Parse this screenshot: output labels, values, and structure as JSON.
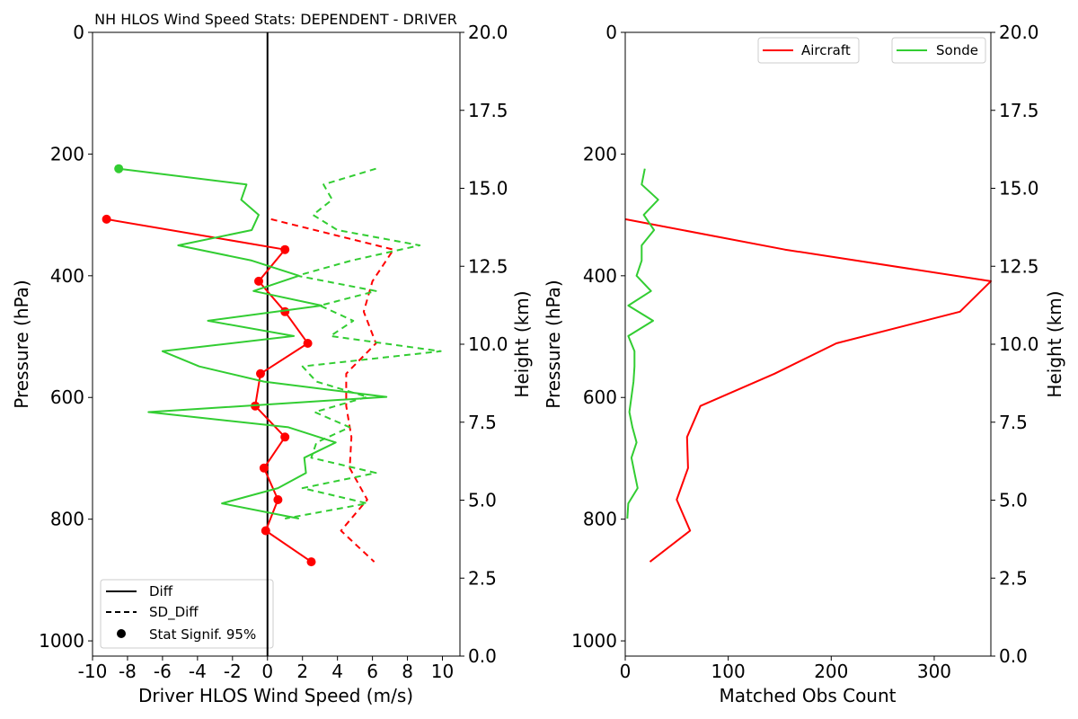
{
  "chart_data": [
    {
      "type": "line",
      "title": "NH HLOS Wind Speed Stats: DEPENDENT - DRIVER",
      "xlabel": "Driver HLOS Wind Speed (m/s)",
      "ylabel": "Pressure (hPa)",
      "ylabel_right": "Height (km)",
      "xlim": [
        -10,
        11
      ],
      "ylim": [
        1025,
        0
      ],
      "ylim_right": [
        0,
        20
      ],
      "xticks": [
        "-10",
        "-8",
        "-6",
        "-4",
        "-2",
        "0",
        "2",
        "4",
        "6",
        "8",
        "10"
      ],
      "xtick_values": [
        -10,
        -8,
        -6,
        -4,
        -2,
        0,
        2,
        4,
        6,
        8,
        10
      ],
      "yticks": [
        "0",
        "200",
        "400",
        "600",
        "800",
        "1000"
      ],
      "ytick_values": [
        0,
        200,
        400,
        600,
        800,
        1000
      ],
      "yticks_right": [
        "0.0",
        "2.5",
        "5.0",
        "7.5",
        "10.0",
        "12.5",
        "15.0",
        "17.5",
        "20.0"
      ],
      "ytick_right_values": [
        0,
        2.5,
        5,
        7.5,
        10,
        12.5,
        15,
        17.5,
        20
      ],
      "zero_line": {
        "x": 0,
        "color": "#000000"
      },
      "legend": {
        "position": "lower-left",
        "entries": [
          {
            "label": "Diff",
            "style": "solid"
          },
          {
            "label": "SD_Diff",
            "style": "dashed"
          },
          {
            "label": "Stat Signif. 95%",
            "style": "marker"
          }
        ]
      },
      "series": [
        {
          "name": "Aircraft Diff",
          "color": "#ff0000",
          "style": "solid",
          "x": [
            -9.2,
            1.0,
            -0.5,
            1.0,
            2.3,
            -0.4,
            -0.7,
            1.0,
            -0.2,
            0.6,
            -0.1,
            2.5
          ],
          "y": [
            307,
            357,
            409,
            459,
            511,
            561,
            614,
            665,
            716,
            768,
            819,
            870
          ],
          "signif": [
            true,
            true,
            true,
            true,
            true,
            true,
            true,
            true,
            true,
            true,
            true,
            true
          ]
        },
        {
          "name": "Aircraft SD_Diff",
          "color": "#ff0000",
          "style": "dashed",
          "x": [
            0.2,
            7.2,
            6.0,
            5.5,
            6.2,
            4.5,
            4.5,
            4.8,
            4.7,
            5.7,
            4.2,
            6.1
          ],
          "y": [
            307,
            357,
            409,
            459,
            511,
            561,
            614,
            665,
            716,
            768,
            819,
            870
          ]
        },
        {
          "name": "Sonde Diff",
          "color": "#32cd32",
          "style": "solid",
          "x": [
            -8.5,
            -1.2,
            -1.5,
            -0.5,
            -0.9,
            -5.1,
            -0.9,
            1.8,
            -0.8,
            3.1,
            -3.4,
            1.5,
            -6.0,
            -3.9,
            -0.2,
            6.8,
            -6.8,
            1.2,
            3.9,
            2.1,
            2.2,
            0.6,
            -2.6,
            1.8
          ],
          "y": [
            224,
            250,
            275,
            300,
            325,
            350,
            375,
            400,
            425,
            449,
            474,
            499,
            524,
            549,
            574,
            599,
            624,
            649,
            674,
            699,
            724,
            749,
            774,
            799
          ],
          "signif": [
            true,
            false,
            false,
            false,
            false,
            false,
            false,
            false,
            false,
            false,
            false,
            false,
            false,
            false,
            false,
            false,
            false,
            false,
            false,
            false,
            false,
            false,
            false,
            false
          ]
        },
        {
          "name": "Sonde SD_Diff",
          "color": "#32cd32",
          "style": "dashed",
          "x": [
            6.2,
            3.2,
            3.7,
            2.6,
            4.0,
            8.7,
            4.8,
            1.7,
            6.2,
            3.0,
            4.9,
            3.6,
            9.9,
            2.0,
            2.8,
            5.7,
            2.7,
            4.7,
            2.8,
            2.5,
            6.2,
            2.0,
            5.7,
            1.0
          ],
          "y": [
            224,
            250,
            275,
            300,
            325,
            350,
            375,
            400,
            425,
            449,
            474,
            499,
            524,
            549,
            574,
            599,
            624,
            649,
            674,
            699,
            724,
            749,
            774,
            799
          ]
        }
      ]
    },
    {
      "type": "line",
      "title": "",
      "xlabel": "Matched Obs Count",
      "ylabel": "Pressure (hPa)",
      "ylabel_right": "Height (km)",
      "xlim": [
        0,
        355
      ],
      "ylim": [
        1025,
        0
      ],
      "ylim_right": [
        0,
        20
      ],
      "xticks": [
        "0",
        "100",
        "200",
        "300"
      ],
      "xtick_values": [
        0,
        100,
        200,
        300
      ],
      "yticks": [
        "0",
        "200",
        "400",
        "600",
        "800",
        "1000"
      ],
      "ytick_values": [
        0,
        200,
        400,
        600,
        800,
        1000
      ],
      "yticks_right": [
        "0.0",
        "2.5",
        "5.0",
        "7.5",
        "10.0",
        "12.5",
        "15.0",
        "17.5",
        "20.0"
      ],
      "ytick_right_values": [
        0,
        2.5,
        5,
        7.5,
        10,
        12.5,
        15,
        17.5,
        20
      ],
      "legend": {
        "position": "top-right",
        "entries": [
          {
            "label": "Aircraft",
            "color": "#ff0000"
          },
          {
            "label": "Sonde",
            "color": "#32cd32"
          }
        ]
      },
      "series": [
        {
          "name": "Aircraft",
          "color": "#ff0000",
          "x": [
            0,
            155,
            355,
            325,
            205,
            145,
            73,
            60,
            61,
            50,
            63,
            24
          ],
          "y": [
            307,
            357,
            409,
            459,
            511,
            561,
            614,
            665,
            716,
            768,
            819,
            870
          ]
        },
        {
          "name": "Sonde",
          "color": "#32cd32",
          "x": [
            19,
            16,
            32,
            18,
            28,
            16,
            16,
            11,
            25,
            3,
            27,
            3,
            9,
            9,
            8,
            6,
            4,
            7,
            11,
            6,
            9,
            12,
            3,
            2
          ],
          "y": [
            224,
            250,
            275,
            300,
            325,
            350,
            375,
            400,
            425,
            449,
            474,
            499,
            524,
            549,
            574,
            599,
            624,
            649,
            674,
            699,
            724,
            749,
            774,
            799
          ]
        }
      ]
    }
  ]
}
